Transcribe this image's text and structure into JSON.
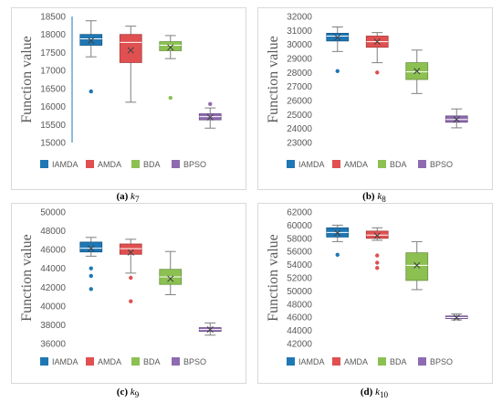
{
  "colors": {
    "IAMDA": "#1f77b4",
    "AMDA": "#e05050",
    "BDA": "#8cc152",
    "BPSO": "#8e6bb0"
  },
  "chart_data": [
    {
      "type": "box",
      "ylabel": "Function value",
      "ylim": [
        15000,
        18500
      ],
      "yticks": [
        "15000",
        "15500",
        "16000",
        "16500",
        "17000",
        "17500",
        "18000",
        "18500"
      ],
      "legend": [
        "IAMDA",
        "AMDA",
        "BDA",
        "BPSO"
      ],
      "caption_letter": "(a)",
      "caption_var": "k",
      "caption_sub": "7",
      "series": [
        {
          "name": "IAMDA",
          "min": 17380,
          "q1": 17700,
          "median": 17880,
          "q3": 18000,
          "max": 18380,
          "mean": 17830,
          "outliers": [
            16420
          ]
        },
        {
          "name": "AMDA",
          "min": 16120,
          "q1": 17220,
          "median": 17780,
          "q3": 18000,
          "max": 18230,
          "mean": 17560,
          "outliers": []
        },
        {
          "name": "BDA",
          "min": 17330,
          "q1": 17550,
          "median": 17700,
          "q3": 17800,
          "max": 17970,
          "mean": 17640,
          "outliers": [
            16240
          ]
        },
        {
          "name": "BPSO",
          "min": 15400,
          "q1": 15630,
          "median": 15720,
          "q3": 15800,
          "max": 15960,
          "mean": 15700,
          "outliers": [
            16070
          ]
        }
      ]
    },
    {
      "type": "box",
      "ylabel": "Function value",
      "ylim": [
        23000,
        32000
      ],
      "yticks": [
        "23000",
        "24000",
        "25000",
        "26000",
        "27000",
        "28000",
        "29000",
        "30000",
        "31000",
        "32000"
      ],
      "legend": [
        "IAMDA",
        "AMDA",
        "BDA",
        "BPSO"
      ],
      "caption_letter": "(b)",
      "caption_var": "k",
      "caption_sub": "8",
      "series": [
        {
          "name": "IAMDA",
          "min": 29500,
          "q1": 30250,
          "median": 30600,
          "q3": 30800,
          "max": 31250,
          "mean": 30500,
          "outliers": [
            28100
          ]
        },
        {
          "name": "AMDA",
          "min": 28700,
          "q1": 29800,
          "median": 30200,
          "q3": 30600,
          "max": 30850,
          "mean": 30200,
          "outliers": [
            28000
          ]
        },
        {
          "name": "BDA",
          "min": 26500,
          "q1": 27500,
          "median": 28050,
          "q3": 28700,
          "max": 29600,
          "mean": 28100,
          "outliers": []
        },
        {
          "name": "BPSO",
          "min": 24050,
          "q1": 24450,
          "median": 24650,
          "q3": 24900,
          "max": 25400,
          "mean": 24650,
          "outliers": []
        }
      ]
    },
    {
      "type": "box",
      "ylabel": "Function value",
      "ylim": [
        36000,
        50000
      ],
      "yticks": [
        "36000",
        "38000",
        "40000",
        "42000",
        "44000",
        "46000",
        "48000",
        "50000"
      ],
      "legend": [
        "IAMDA",
        "AMDA",
        "BDA",
        "BPSO"
      ],
      "caption_letter": "(c)",
      "caption_var": "k",
      "caption_sub": "9",
      "series": [
        {
          "name": "IAMDA",
          "min": 45300,
          "q1": 45750,
          "median": 46150,
          "q3": 46800,
          "max": 47300,
          "mean": 46100,
          "outliers": [
            44000,
            43200,
            41800
          ]
        },
        {
          "name": "AMDA",
          "min": 43500,
          "q1": 45500,
          "median": 46100,
          "q3": 46600,
          "max": 47100,
          "mean": 45700,
          "outliers": [
            43000,
            40500
          ]
        },
        {
          "name": "BDA",
          "min": 41200,
          "q1": 42300,
          "median": 43100,
          "q3": 43900,
          "max": 45800,
          "mean": 42900,
          "outliers": []
        },
        {
          "name": "BPSO",
          "min": 36900,
          "q1": 37300,
          "median": 37500,
          "q3": 37700,
          "max": 38200,
          "mean": 37500,
          "outliers": []
        }
      ]
    },
    {
      "type": "box",
      "ylabel": "Function value",
      "ylim": [
        42000,
        62000
      ],
      "yticks": [
        "42000",
        "44000",
        "46000",
        "48000",
        "50000",
        "52000",
        "54000",
        "56000",
        "58000",
        "60000",
        "62000"
      ],
      "legend": [
        "IAMDA",
        "AMDA",
        "BDA",
        "BPSO"
      ],
      "caption_letter": "(d)",
      "caption_var": "k",
      "caption_sub": "10",
      "series": [
        {
          "name": "IAMDA",
          "min": 57500,
          "q1": 58200,
          "median": 58900,
          "q3": 59600,
          "max": 60000,
          "mean": 58800,
          "outliers": [
            55500
          ]
        },
        {
          "name": "AMDA",
          "min": 57700,
          "q1": 58000,
          "median": 58500,
          "q3": 59100,
          "max": 59600,
          "mean": 58400,
          "outliers": [
            55400,
            54300,
            53500
          ]
        },
        {
          "name": "BDA",
          "min": 50200,
          "q1": 51600,
          "median": 53900,
          "q3": 55800,
          "max": 57500,
          "mean": 53900,
          "outliers": []
        },
        {
          "name": "BPSO",
          "min": 45600,
          "q1": 45800,
          "median": 45950,
          "q3": 46200,
          "max": 46500,
          "mean": 45950,
          "outliers": []
        }
      ]
    }
  ]
}
